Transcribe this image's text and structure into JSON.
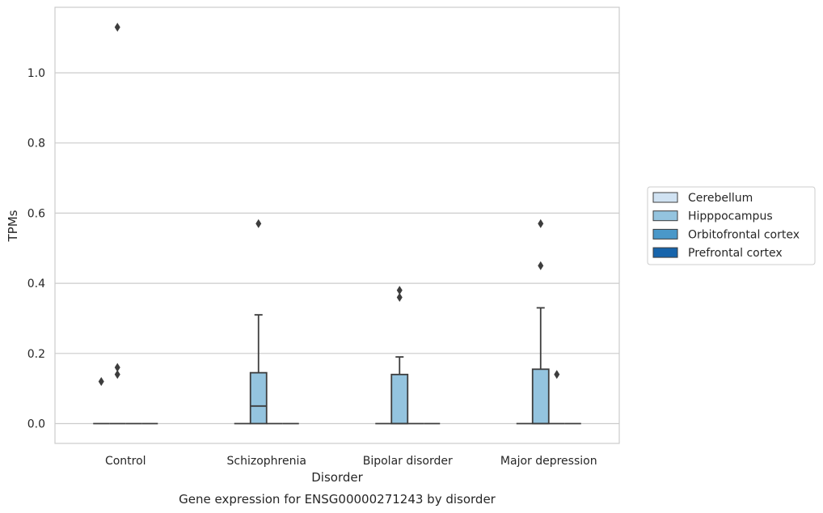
{
  "caption": "Gene expression for ENSG00000271243 by disorder",
  "chart_data": {
    "type": "box",
    "xlabel": "Disorder",
    "ylabel": "TPMs",
    "ylim": [
      -0.055,
      1.19
    ],
    "yticks": [
      0.0,
      0.2,
      0.4,
      0.6,
      0.8,
      1.0
    ],
    "ytick_labels": [
      "0.0",
      "0.2",
      "0.4",
      "0.6",
      "0.8",
      "1.0"
    ],
    "grid": "horizontal",
    "legend_position": "right",
    "categories": [
      "Control",
      "Schizophrenia",
      "Bipolar disorder",
      "Major depression"
    ],
    "series": [
      {
        "name": "Cerebellum",
        "color": "#d0e2f2",
        "boxes": [
          {
            "q1": 0,
            "median": 0,
            "q3": 0,
            "whisker_low": 0,
            "whisker_high": 0,
            "outliers": [
              0.12
            ]
          },
          {
            "q1": 0,
            "median": 0,
            "q3": 0,
            "whisker_low": 0,
            "whisker_high": 0,
            "outliers": []
          },
          {
            "q1": 0,
            "median": 0,
            "q3": 0,
            "whisker_low": 0,
            "whisker_high": 0,
            "outliers": []
          },
          {
            "q1": 0,
            "median": 0,
            "q3": 0,
            "whisker_low": 0,
            "whisker_high": 0,
            "outliers": []
          }
        ]
      },
      {
        "name": "Hipppocampus",
        "color": "#94c4df",
        "boxes": [
          {
            "q1": 0,
            "median": 0,
            "q3": 0,
            "whisker_low": 0,
            "whisker_high": 0,
            "outliers": [
              1.13,
              0.16,
              0.14
            ]
          },
          {
            "q1": 0,
            "median": 0.05,
            "q3": 0.145,
            "whisker_low": 0,
            "whisker_high": 0.31,
            "outliers": [
              0.57
            ]
          },
          {
            "q1": 0,
            "median": 0,
            "q3": 0.14,
            "whisker_low": 0,
            "whisker_high": 0.19,
            "outliers": [
              0.38,
              0.36
            ]
          },
          {
            "q1": 0,
            "median": 0,
            "q3": 0.155,
            "whisker_low": 0,
            "whisker_high": 0.33,
            "outliers": [
              0.57,
              0.45
            ]
          }
        ]
      },
      {
        "name": "Orbitofrontal cortex",
        "color": "#4a98c9",
        "boxes": [
          {
            "q1": 0,
            "median": 0,
            "q3": 0,
            "whisker_low": 0,
            "whisker_high": 0,
            "outliers": []
          },
          {
            "q1": 0,
            "median": 0,
            "q3": 0,
            "whisker_low": 0,
            "whisker_high": 0,
            "outliers": []
          },
          {
            "q1": 0,
            "median": 0,
            "q3": 0,
            "whisker_low": 0,
            "whisker_high": 0,
            "outliers": []
          },
          {
            "q1": 0,
            "median": 0,
            "q3": 0,
            "whisker_low": 0,
            "whisker_high": 0,
            "outliers": [
              0.14
            ]
          }
        ]
      },
      {
        "name": "Prefrontal cortex",
        "color": "#1764ab",
        "boxes": [
          {
            "q1": 0,
            "median": 0,
            "q3": 0,
            "whisker_low": 0,
            "whisker_high": 0,
            "outliers": []
          },
          {
            "q1": 0,
            "median": 0,
            "q3": 0,
            "whisker_low": 0,
            "whisker_high": 0,
            "outliers": []
          },
          {
            "q1": 0,
            "median": 0,
            "q3": 0,
            "whisker_low": 0,
            "whisker_high": 0,
            "outliers": []
          },
          {
            "q1": 0,
            "median": 0,
            "q3": 0,
            "whisker_low": 0,
            "whisker_high": 0,
            "outliers": []
          }
        ]
      }
    ]
  }
}
